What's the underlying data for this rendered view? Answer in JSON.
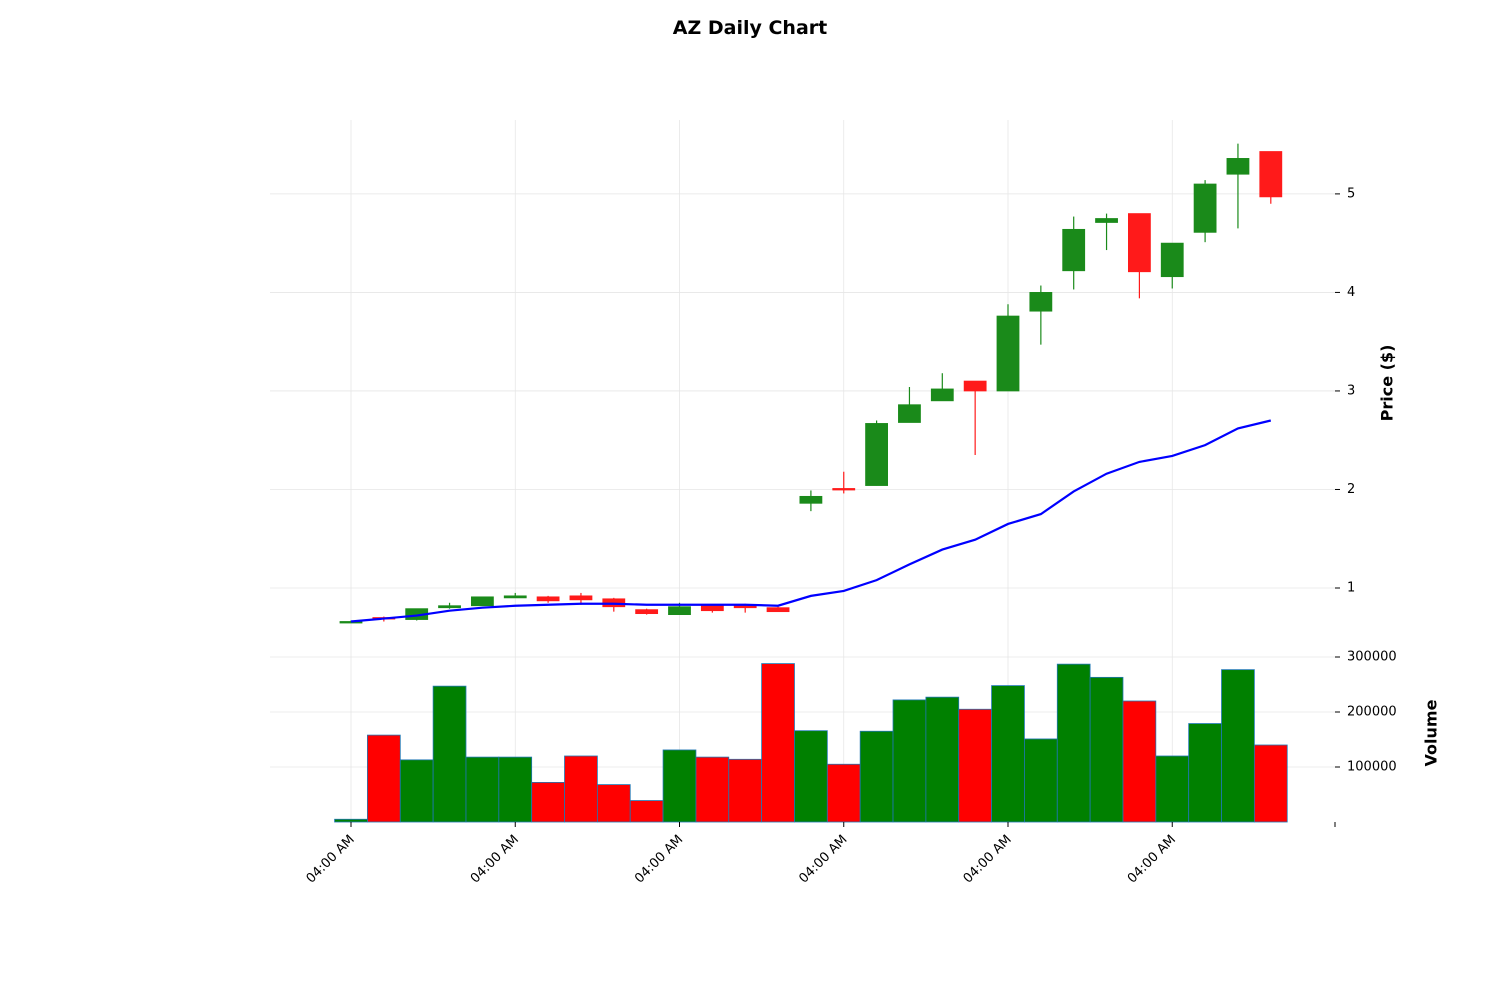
{
  "title": "AZ Daily Chart",
  "colors": {
    "up": "#1a8a1a",
    "down": "#ff1a1a",
    "volume_up": "#008000",
    "volume_down": "#ff0000",
    "volume_edge": "#1f77b4",
    "ma_line": "#0000ff",
    "grid": "#e6e6e6"
  },
  "chart_data": {
    "type": "candlestick",
    "price_axis": {
      "label": "Price ($)",
      "ticks": [
        1,
        2,
        3,
        4,
        5
      ],
      "ylim": [
        0.32,
        5.75
      ],
      "position": "right"
    },
    "volume_axis": {
      "label": "Volume",
      "ticks": [
        100000,
        200000,
        300000
      ],
      "tick_labels": [
        "100000",
        "200000",
        "300000"
      ],
      "ylim": [
        0,
        300000
      ],
      "position": "right"
    },
    "x_tick_labels": [
      "04:00 AM",
      "04:00 AM",
      "04:00 AM",
      "04:00 AM",
      "04:00 AM",
      "04:00 AM"
    ],
    "x_tick_indices": [
      0,
      5,
      10,
      15,
      20,
      25
    ],
    "grid": true,
    "candles": [
      {
        "o": 0.66,
        "h": 0.67,
        "l": 0.65,
        "c": 0.66
      },
      {
        "o": 0.7,
        "h": 0.71,
        "l": 0.66,
        "c": 0.69
      },
      {
        "o": 0.68,
        "h": 0.79,
        "l": 0.67,
        "c": 0.79
      },
      {
        "o": 0.8,
        "h": 0.85,
        "l": 0.79,
        "c": 0.82
      },
      {
        "o": 0.82,
        "h": 0.91,
        "l": 0.82,
        "c": 0.91
      },
      {
        "o": 0.9,
        "h": 0.95,
        "l": 0.9,
        "c": 0.92
      },
      {
        "o": 0.91,
        "h": 0.92,
        "l": 0.85,
        "c": 0.87
      },
      {
        "o": 0.92,
        "h": 0.95,
        "l": 0.83,
        "c": 0.88
      },
      {
        "o": 0.89,
        "h": 0.9,
        "l": 0.76,
        "c": 0.81
      },
      {
        "o": 0.78,
        "h": 0.79,
        "l": 0.73,
        "c": 0.74
      },
      {
        "o": 0.73,
        "h": 0.85,
        "l": 0.73,
        "c": 0.81
      },
      {
        "o": 0.83,
        "h": 0.83,
        "l": 0.75,
        "c": 0.77
      },
      {
        "o": 0.83,
        "h": 0.84,
        "l": 0.75,
        "c": 0.8
      },
      {
        "o": 0.8,
        "h": 0.81,
        "l": 0.76,
        "c": 0.76
      },
      {
        "o": 1.86,
        "h": 1.99,
        "l": 1.78,
        "c": 1.93
      },
      {
        "o": 2.01,
        "h": 2.18,
        "l": 1.96,
        "c": 2.0
      },
      {
        "o": 2.04,
        "h": 2.7,
        "l": 2.04,
        "c": 2.67
      },
      {
        "o": 2.68,
        "h": 3.04,
        "l": 2.68,
        "c": 2.86
      },
      {
        "o": 2.9,
        "h": 3.18,
        "l": 2.9,
        "c": 3.02
      },
      {
        "o": 3.1,
        "h": 3.1,
        "l": 2.35,
        "c": 3.0
      },
      {
        "o": 3.0,
        "h": 3.88,
        "l": 3.0,
        "c": 3.76
      },
      {
        "o": 3.81,
        "h": 4.07,
        "l": 3.47,
        "c": 4.0
      },
      {
        "o": 4.22,
        "h": 4.77,
        "l": 4.03,
        "c": 4.64
      },
      {
        "o": 4.71,
        "h": 4.8,
        "l": 4.43,
        "c": 4.75
      },
      {
        "o": 4.8,
        "h": 4.8,
        "l": 3.94,
        "c": 4.21
      },
      {
        "o": 4.16,
        "h": 4.5,
        "l": 4.04,
        "c": 4.5
      },
      {
        "o": 4.61,
        "h": 5.14,
        "l": 4.51,
        "c": 5.1
      },
      {
        "o": 5.2,
        "h": 5.51,
        "l": 4.65,
        "c": 5.36
      },
      {
        "o": 5.43,
        "h": 5.43,
        "l": 4.9,
        "c": 4.97
      }
    ],
    "moving_average": [
      0.66,
      0.69,
      0.72,
      0.77,
      0.8,
      0.82,
      0.83,
      0.84,
      0.84,
      0.83,
      0.83,
      0.83,
      0.83,
      0.82,
      0.92,
      0.97,
      1.08,
      1.24,
      1.39,
      1.49,
      1.65,
      1.75,
      1.98,
      2.16,
      2.28,
      2.34,
      2.45,
      2.62,
      2.7
    ],
    "volumes": [
      5000,
      158000,
      113000,
      247000,
      118000,
      118000,
      72000,
      120000,
      68000,
      39000,
      131000,
      118000,
      114000,
      288000,
      166000,
      105000,
      165000,
      222000,
      227000,
      205000,
      248000,
      151000,
      287000,
      263000,
      220000,
      120000,
      179000,
      277000,
      140000
    ]
  }
}
